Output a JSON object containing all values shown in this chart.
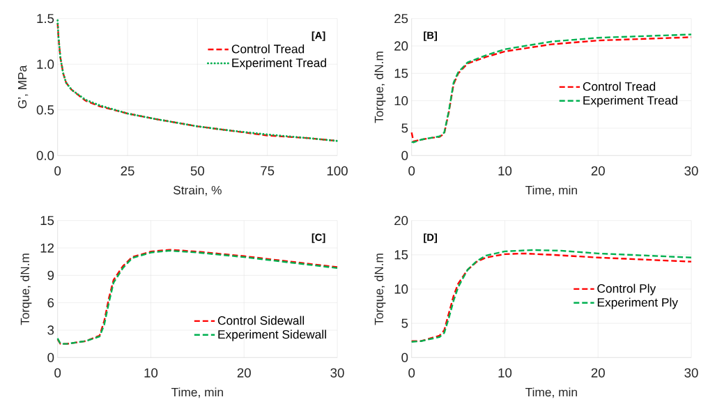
{
  "chart_data": [
    {
      "type": "line",
      "xlabel": "Strain, %",
      "ylabel": "G’, MPa",
      "annotations": [
        "[A]"
      ],
      "xlim": [
        0,
        100
      ],
      "ylim": [
        0,
        1.5
      ],
      "xticks": [
        0,
        25,
        50,
        75,
        100
      ],
      "yticks": [
        {
          "value": 0,
          "label": "0.0"
        },
        0.5,
        {
          "value": 1,
          "label": "1.0"
        },
        1.5
      ],
      "grid": true,
      "legend": "top right",
      "series": [
        {
          "name": "Control Tread",
          "color": "#ff0000",
          "line_style": "dashed",
          "x": [
            0,
            0.3,
            1,
            2,
            3,
            5,
            10,
            15,
            25,
            35,
            50,
            60,
            75,
            90,
            100
          ],
          "values": [
            1.45,
            1.3,
            1.07,
            0.9,
            0.8,
            0.72,
            0.6,
            0.54,
            0.46,
            0.4,
            0.32,
            0.28,
            0.22,
            0.19,
            0.16
          ]
        },
        {
          "name": "Experiment Tread",
          "color": "#00b050",
          "line_style": "dotted",
          "x": [
            0,
            0.3,
            1,
            2,
            3,
            5,
            10,
            15,
            25,
            35,
            50,
            60,
            75,
            90,
            100
          ],
          "values": [
            1.48,
            1.3,
            1.07,
            0.9,
            0.8,
            0.72,
            0.61,
            0.55,
            0.46,
            0.4,
            0.32,
            0.28,
            0.23,
            0.19,
            0.16
          ]
        }
      ]
    },
    {
      "type": "line",
      "xlabel": "Time, min",
      "ylabel": "Torque, dN.m",
      "annotations": [
        "[B]"
      ],
      "xlim": [
        0,
        30
      ],
      "ylim": [
        0,
        25
      ],
      "xticks": [
        0,
        10,
        20,
        30
      ],
      "yticks": [
        0,
        5,
        10,
        15,
        20,
        25
      ],
      "grid": true,
      "legend": "right",
      "series": [
        {
          "name": "Control Tread",
          "color": "#ff0000",
          "line_style": "dashed",
          "x": [
            0,
            0.2,
            1,
            2,
            3,
            3.5,
            4,
            4.5,
            5,
            6,
            8,
            10,
            15,
            20,
            25,
            30
          ],
          "values": [
            4.2,
            2.6,
            2.9,
            3.2,
            3.4,
            4,
            8,
            13,
            15,
            16.8,
            18,
            19,
            20.3,
            21,
            21.3,
            21.6
          ]
        },
        {
          "name": "Experiment Tread",
          "color": "#00b050",
          "line_style": "dashed",
          "x": [
            0,
            0.2,
            1,
            2,
            3,
            3.5,
            4,
            4.5,
            5,
            6,
            8,
            10,
            15,
            20,
            25,
            30
          ],
          "values": [
            2.5,
            2.4,
            2.9,
            3.2,
            3.5,
            4.2,
            8.2,
            13.3,
            15.2,
            17,
            18.3,
            19.4,
            20.8,
            21.5,
            21.8,
            22.1
          ]
        }
      ]
    },
    {
      "type": "line",
      "xlabel": "Time, min",
      "ylabel": "Torque, dN.m",
      "annotations": [
        "[C]"
      ],
      "xlim": [
        0,
        30
      ],
      "ylim": [
        0,
        15
      ],
      "xticks": [
        0,
        10,
        20,
        30
      ],
      "yticks": [
        0,
        3,
        6,
        9,
        12,
        15
      ],
      "grid": true,
      "legend": "bottom right",
      "series": [
        {
          "name": "Control Sidewall",
          "color": "#ff0000",
          "line_style": "dashed",
          "x": [
            0,
            0.3,
            1,
            3,
            4.5,
            5,
            5.5,
            6,
            7,
            8,
            10,
            12,
            15,
            20,
            25,
            30
          ],
          "values": [
            2,
            1.5,
            1.5,
            1.8,
            2.4,
            4,
            6.5,
            8.5,
            10,
            11,
            11.6,
            11.8,
            11.6,
            11.1,
            10.5,
            9.9
          ]
        },
        {
          "name": "Experiment Sidewall",
          "color": "#00b050",
          "line_style": "dashed",
          "x": [
            0,
            0.3,
            1,
            3,
            4.5,
            5,
            5.5,
            6,
            7,
            8,
            10,
            12,
            15,
            20,
            25,
            30
          ],
          "values": [
            2.1,
            1.5,
            1.5,
            1.8,
            2.3,
            3.6,
            6,
            8.2,
            9.8,
            10.9,
            11.5,
            11.7,
            11.5,
            11,
            10.4,
            9.8
          ]
        }
      ]
    },
    {
      "type": "line",
      "xlabel": "Time, min",
      "ylabel": "Torque, dN.m",
      "annotations": [
        "[D]"
      ],
      "xlim": [
        0,
        30
      ],
      "ylim": [
        0,
        20
      ],
      "xticks": [
        0,
        10,
        20,
        30
      ],
      "yticks": [
        0,
        5,
        10,
        15,
        20
      ],
      "grid": true,
      "legend": "right",
      "series": [
        {
          "name": "Control Ply",
          "color": "#ff0000",
          "line_style": "dashed",
          "x": [
            0,
            1,
            3,
            3.5,
            4,
            4.5,
            5,
            6,
            7,
            8,
            10,
            12,
            15,
            20,
            25,
            30
          ],
          "values": [
            2.4,
            2.4,
            3.2,
            4,
            6.5,
            9,
            10.8,
            12.8,
            14,
            14.6,
            15.1,
            15.2,
            15,
            14.6,
            14.3,
            14
          ]
        },
        {
          "name": "Experiment Ply",
          "color": "#00b050",
          "line_style": "dashed",
          "x": [
            0,
            1,
            3,
            3.5,
            4,
            4.5,
            5,
            6,
            7,
            8,
            10,
            13,
            16,
            20,
            25,
            30
          ],
          "values": [
            2.3,
            2.4,
            3,
            3.6,
            5.8,
            8.3,
            10.3,
            12.8,
            14.1,
            14.9,
            15.5,
            15.7,
            15.6,
            15.2,
            14.9,
            14.6
          ]
        }
      ]
    }
  ]
}
